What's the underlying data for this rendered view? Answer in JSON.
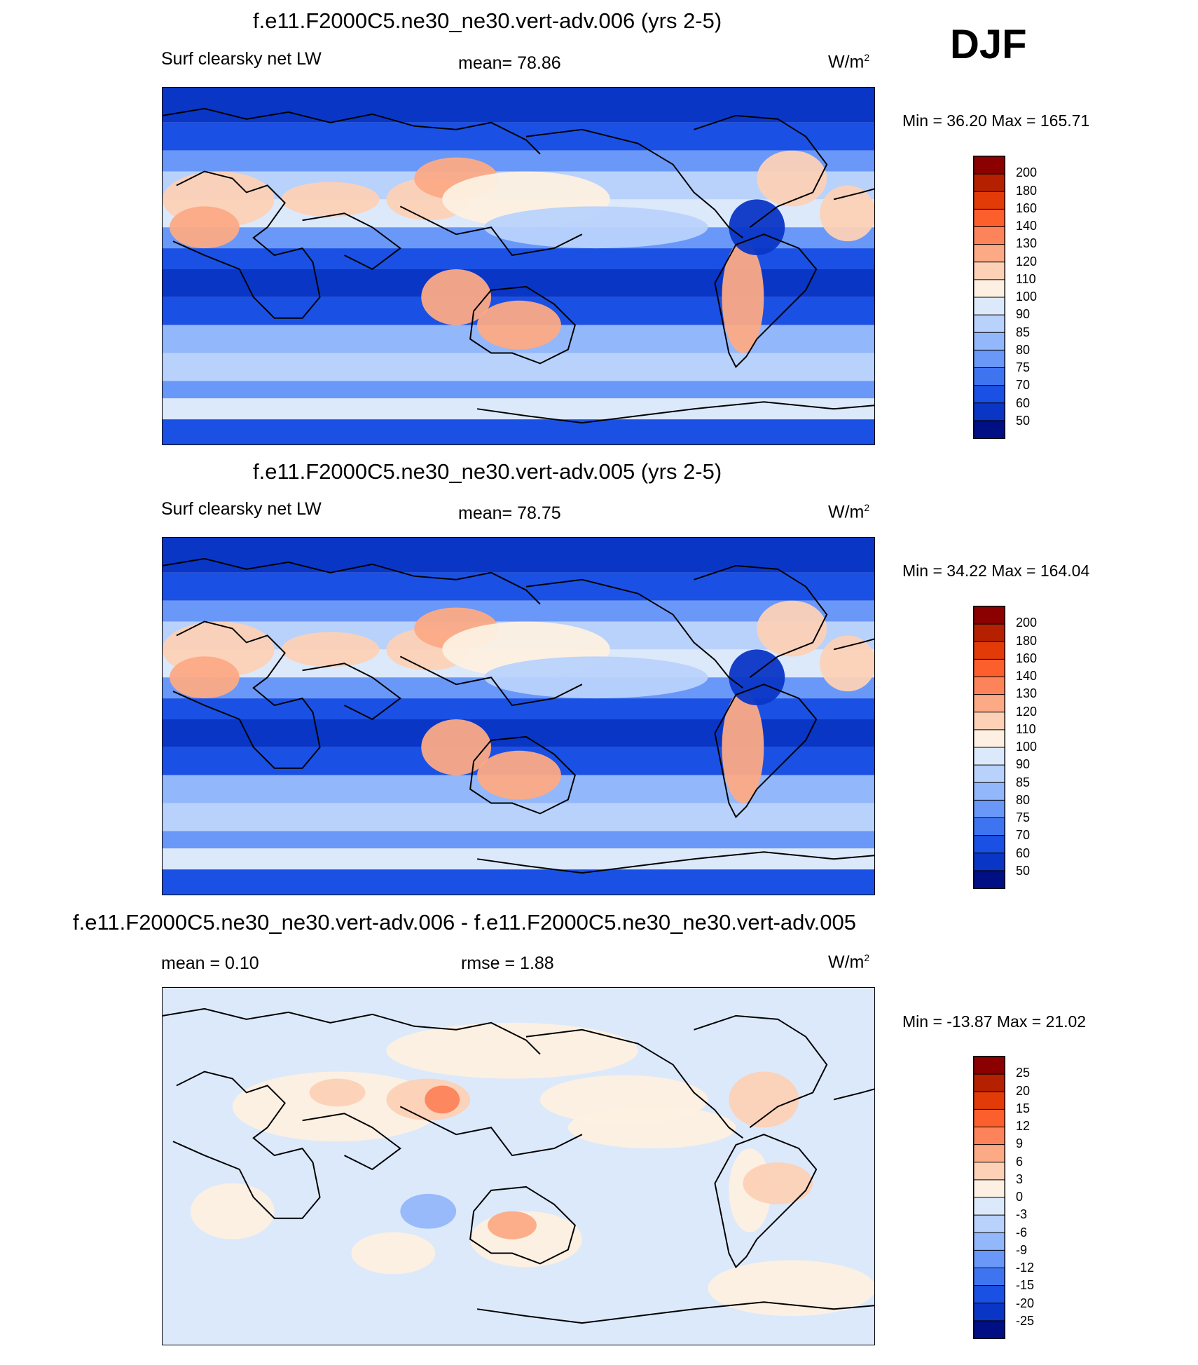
{
  "season": "DJF",
  "panels": [
    {
      "title": "f.e11.F2000C5.ne30_ne30.vert-adv.006 (yrs 2-5)",
      "left_label": "Surf clearsky net LW",
      "center_label": "mean=  78.86",
      "units": "W/m",
      "units_sup": "2",
      "minmax": "Min =  36.20 Max = 165.71",
      "kind": "field",
      "colorbar_levels": [
        "200",
        "180",
        "160",
        "140",
        "130",
        "120",
        "110",
        "100",
        "90",
        "85",
        "80",
        "75",
        "70",
        "60",
        "50"
      ],
      "colorbar_colors": [
        "#8b0000",
        "#b42000",
        "#e33b08",
        "#fc5f2c",
        "#fd845a",
        "#fcaa85",
        "#fcd1b6",
        "#fdf0e2",
        "#dce9fb",
        "#b9d2fc",
        "#93b7fb",
        "#6a98f8",
        "#3f74f1",
        "#1a51e4",
        "#0a36c6",
        "#000f84"
      ]
    },
    {
      "title": "f.e11.F2000C5.ne30_ne30.vert-adv.005 (yrs 2-5)",
      "left_label": "Surf clearsky net LW",
      "center_label": "mean=  78.75",
      "units": "W/m",
      "units_sup": "2",
      "minmax": "Min =  34.22 Max = 164.04",
      "kind": "field",
      "colorbar_levels": [
        "200",
        "180",
        "160",
        "140",
        "130",
        "120",
        "110",
        "100",
        "90",
        "85",
        "80",
        "75",
        "70",
        "60",
        "50"
      ],
      "colorbar_colors": [
        "#8b0000",
        "#b42000",
        "#e33b08",
        "#fc5f2c",
        "#fd845a",
        "#fcaa85",
        "#fcd1b6",
        "#fdf0e2",
        "#dce9fb",
        "#b9d2fc",
        "#93b7fb",
        "#6a98f8",
        "#3f74f1",
        "#1a51e4",
        "#0a36c6",
        "#000f84"
      ]
    },
    {
      "title": "f.e11.F2000C5.ne30_ne30.vert-adv.006 - f.e11.F2000C5.ne30_ne30.vert-adv.005",
      "left_label": "mean =   0.10",
      "center_label": "rmse =   1.88",
      "units": "W/m",
      "units_sup": "2",
      "minmax": "Min = -13.87 Max =  21.02",
      "kind": "diff",
      "colorbar_levels": [
        "25",
        "20",
        "15",
        "12",
        "9",
        "6",
        "3",
        "0",
        "-3",
        "-6",
        "-9",
        "-12",
        "-15",
        "-20",
        "-25"
      ],
      "colorbar_colors": [
        "#8b0000",
        "#b42000",
        "#e33b08",
        "#fc5f2c",
        "#fd845a",
        "#fcaa85",
        "#fcd1b6",
        "#fdf0e2",
        "#dce9fb",
        "#b9d2fc",
        "#93b7fb",
        "#6a98f8",
        "#3f74f1",
        "#1a51e4",
        "#0a36c6",
        "#000f84"
      ]
    }
  ],
  "chart_data": [
    {
      "type": "heatmap",
      "title": "f.e11.F2000C5.ne30_ne30.vert-adv.006 (yrs 2-5)",
      "variable": "Surf clearsky net LW",
      "units": "W/m2",
      "mean": 78.86,
      "min": 36.2,
      "max": 165.71,
      "levels": [
        50,
        60,
        70,
        75,
        80,
        85,
        90,
        100,
        110,
        120,
        130,
        140,
        160,
        180,
        200
      ]
    },
    {
      "type": "heatmap",
      "title": "f.e11.F2000C5.ne30_ne30.vert-adv.005 (yrs 2-5)",
      "variable": "Surf clearsky net LW",
      "units": "W/m2",
      "mean": 78.75,
      "min": 34.22,
      "max": 164.04,
      "levels": [
        50,
        60,
        70,
        75,
        80,
        85,
        90,
        100,
        110,
        120,
        130,
        140,
        160,
        180,
        200
      ]
    },
    {
      "type": "heatmap",
      "title": "f.e11.F2000C5.ne30_ne30.vert-adv.006 - f.e11.F2000C5.ne30_ne30.vert-adv.005",
      "units": "W/m2",
      "mean": 0.1,
      "rmse": 1.88,
      "min": -13.87,
      "max": 21.02,
      "levels": [
        -25,
        -20,
        -15,
        -12,
        -9,
        -6,
        -3,
        0,
        3,
        6,
        9,
        12,
        15,
        20,
        25
      ]
    }
  ]
}
